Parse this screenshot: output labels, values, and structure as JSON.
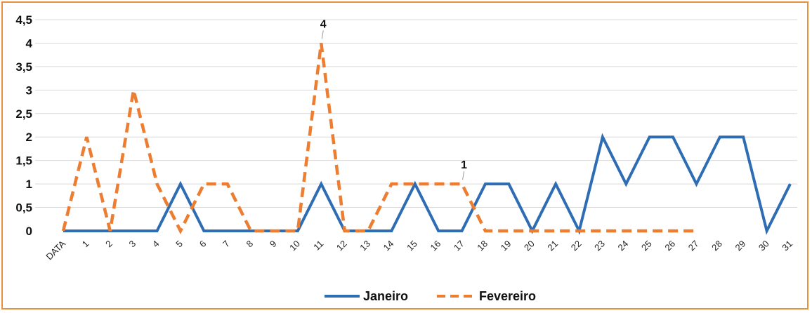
{
  "chart_data": {
    "type": "line",
    "title": "",
    "xlabel": "",
    "ylabel": "",
    "categories": [
      "DATA",
      "1",
      "2",
      "3",
      "4",
      "5",
      "6",
      "7",
      "8",
      "9",
      "10",
      "11",
      "12",
      "13",
      "14",
      "15",
      "16",
      "17",
      "18",
      "19",
      "20",
      "21",
      "22",
      "23",
      "24",
      "25",
      "26",
      "27",
      "28",
      "29",
      "30",
      "31"
    ],
    "y_ticks": [
      "0",
      "0,5",
      "1",
      "1,5",
      "2",
      "2,5",
      "3",
      "3,5",
      "4",
      "4,5"
    ],
    "ylim": [
      0,
      4.5
    ],
    "grid": true,
    "legend_position": "bottom",
    "series": [
      {
        "name": "Janeiro",
        "color": "#2e6db4",
        "style": "solid",
        "values": [
          0,
          0,
          0,
          0,
          0,
          1,
          0,
          0,
          0,
          0,
          0,
          1,
          0,
          0,
          0,
          1,
          0,
          0,
          1,
          1,
          0,
          1,
          0,
          2,
          1,
          2,
          2,
          1,
          2,
          2,
          0,
          1
        ]
      },
      {
        "name": "Fevereiro",
        "color": "#ed7d31",
        "style": "dashed",
        "values": [
          0,
          2,
          0,
          3,
          1,
          0,
          1,
          1,
          0,
          0,
          0,
          4,
          0,
          0,
          1,
          1,
          1,
          1,
          0,
          0,
          0,
          0,
          0,
          0,
          0,
          0,
          0,
          0,
          null,
          null,
          null,
          null
        ]
      }
    ],
    "data_labels": [
      {
        "series": "Fevereiro",
        "category": "11",
        "text": "4"
      },
      {
        "series": "Fevereiro",
        "category": "17",
        "text": "1"
      }
    ]
  }
}
